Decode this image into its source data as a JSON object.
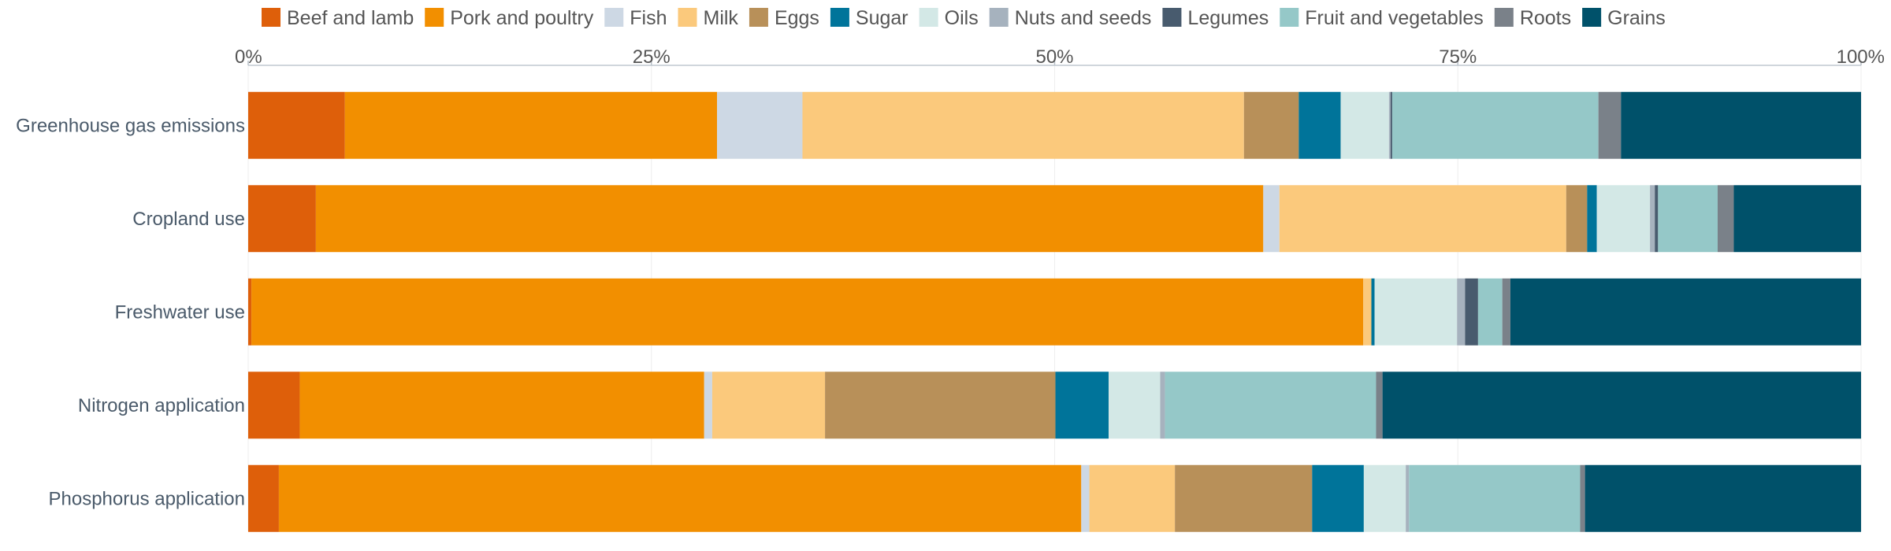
{
  "chart_data": {
    "type": "bar",
    "orientation": "horizontal",
    "stacked": "percent",
    "legend_position": "top",
    "grid": true,
    "xlim": [
      0,
      100
    ],
    "x_ticks": [
      "0%",
      "25%",
      "50%",
      "75%",
      "100%"
    ],
    "categories": [
      "Greenhouse gas emissions",
      "Cropland use",
      "Freshwater use",
      "Nitrogen application",
      "Phosphorus application"
    ],
    "series": [
      {
        "name": "Beef and lamb",
        "color": "#de5f0a",
        "values": [
          6.0,
          4.2,
          0.2,
          3.2,
          1.9
        ]
      },
      {
        "name": "Pork and poultry",
        "color": "#f28f00",
        "values": [
          23.1,
          58.8,
          68.8,
          25.1,
          49.7
        ]
      },
      {
        "name": "Fish",
        "color": "#cdd8e4",
        "values": [
          5.3,
          1.0,
          0.0,
          0.5,
          0.5
        ]
      },
      {
        "name": "Milk",
        "color": "#fbc97c",
        "values": [
          27.4,
          17.8,
          0.5,
          7.0,
          5.3
        ]
      },
      {
        "name": "Eggs",
        "color": "#b89059",
        "values": [
          3.4,
          1.3,
          0.0,
          14.3,
          8.5
        ]
      },
      {
        "name": "Sugar",
        "color": "#00749a",
        "values": [
          2.6,
          0.6,
          0.2,
          3.3,
          3.2
        ]
      },
      {
        "name": "Oils",
        "color": "#d3e8e6",
        "values": [
          3.0,
          3.3,
          5.1,
          3.2,
          2.6
        ]
      },
      {
        "name": "Nuts and seeds",
        "color": "#a6b2be",
        "values": [
          0.1,
          0.3,
          0.5,
          0.3,
          0.2
        ]
      },
      {
        "name": "Legumes",
        "color": "#485b6e",
        "values": [
          0.1,
          0.2,
          0.8,
          0.0,
          0.0
        ]
      },
      {
        "name": "Fruit and vegetables",
        "color": "#95c8c8",
        "values": [
          12.8,
          3.7,
          1.5,
          13.1,
          10.6
        ]
      },
      {
        "name": "Roots",
        "color": "#7a8189",
        "values": [
          1.4,
          1.0,
          0.5,
          0.4,
          0.3
        ]
      },
      {
        "name": "Grains",
        "color": "#00516a",
        "values": [
          14.9,
          7.9,
          21.7,
          29.7,
          17.1
        ]
      }
    ]
  }
}
